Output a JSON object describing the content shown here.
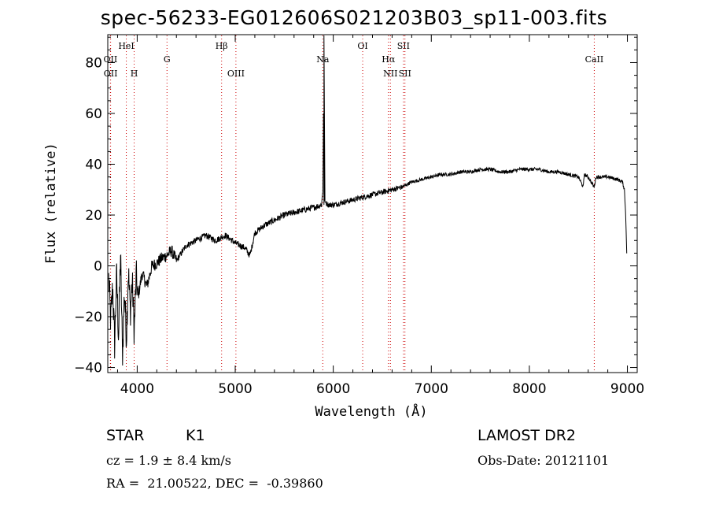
{
  "title": "spec-56233-EG012606S021203B03_sp11-003.fits",
  "footer": {
    "object_class": "STAR",
    "subclass": "K1",
    "cz": "cz = 1.9 ± 8.4 km/s",
    "radec": "RA =  21.00522, DEC =  -0.39860",
    "survey": "LAMOST DR2",
    "obs_date": "Obs-Date: 20121101"
  },
  "chart_data": {
    "type": "line",
    "title": "spec-56233-EG012606S021203B03_sp11-003.fits",
    "xlabel": "Wavelength (Å)",
    "ylabel": "Flux (relative)",
    "xlim": [
      3700,
      9100
    ],
    "ylim": [
      -42,
      91
    ],
    "xticks": [
      4000,
      5000,
      6000,
      7000,
      8000,
      9000
    ],
    "yticks": [
      -40,
      -20,
      0,
      20,
      40,
      60,
      80
    ],
    "grid": false,
    "legend": "none",
    "line_color": "#000000",
    "marker_color": "#cc0000",
    "line_markers": [
      {
        "label": "OII",
        "x": 3727,
        "row": "upper"
      },
      {
        "label": "OII",
        "x": 3729,
        "row": "lower"
      },
      {
        "label": "HeI",
        "x": 3889,
        "row": "top"
      },
      {
        "label": "H",
        "x": 3969,
        "row": "lower"
      },
      {
        "label": "G",
        "x": 4304,
        "row": "upper"
      },
      {
        "label": "Hβ",
        "x": 4861,
        "row": "top"
      },
      {
        "label": "OIII",
        "x": 5007,
        "row": "lower"
      },
      {
        "label": "Na",
        "x": 5893,
        "row": "upper"
      },
      {
        "label": "OI",
        "x": 6300,
        "row": "top"
      },
      {
        "label": "Hα",
        "x": 6563,
        "row": "upper"
      },
      {
        "label": "NII",
        "x": 6583,
        "row": "lower"
      },
      {
        "label": "SII",
        "x": 6716,
        "row": "top"
      },
      {
        "label": "SII",
        "x": 6731,
        "row": "lower"
      },
      {
        "label": "CaII",
        "x": 8662,
        "row": "upper"
      }
    ],
    "series": [
      {
        "x": [
          3710,
          3730,
          3750,
          3770,
          3790,
          3810,
          3830,
          3850,
          3870,
          3890,
          3910,
          3930,
          3950,
          3970,
          3990,
          4010,
          4050,
          4100,
          4150,
          4200,
          4250,
          4300,
          4350,
          4400,
          4500,
          4600,
          4700,
          4800,
          4900,
          5000,
          5100,
          5150,
          5200,
          5300,
          5400,
          5500,
          5600,
          5700,
          5800,
          5880,
          5895,
          5900,
          5905,
          5910,
          5920,
          5950,
          6000,
          6100,
          6200,
          6300,
          6400,
          6500,
          6600,
          6700,
          6800,
          6900,
          7000,
          7100,
          7200,
          7300,
          7400,
          7500,
          7600,
          7700,
          7800,
          7900,
          8000,
          8100,
          8200,
          8300,
          8400,
          8500,
          8550,
          8560,
          8600,
          8660,
          8680,
          8700,
          8800,
          8900,
          8950,
          8970,
          8985,
          8995
        ],
        "y": [
          -5,
          -22,
          -8,
          -31,
          -3,
          -28,
          5,
          -35,
          -10,
          -28,
          -2,
          -18,
          -6,
          -26,
          -4,
          -12,
          -3,
          -8,
          0,
          1,
          3,
          4,
          6,
          2,
          8,
          10,
          12,
          10,
          12,
          9,
          7,
          4,
          13,
          16,
          18,
          20,
          21,
          22,
          23,
          24,
          30,
          60,
          38,
          26,
          25,
          24,
          24,
          25,
          26,
          27,
          28,
          29,
          30,
          31,
          33,
          34,
          35,
          36,
          36,
          37,
          37,
          38,
          38,
          37,
          37,
          38,
          38,
          38,
          37,
          37,
          36,
          35,
          31,
          36,
          35,
          31,
          35,
          35,
          35,
          34,
          33,
          30,
          18,
          1
        ]
      }
    ]
  }
}
